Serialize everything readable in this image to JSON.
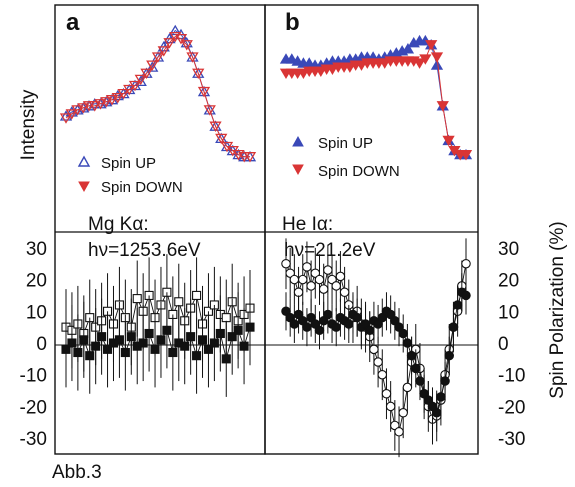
{
  "figure": {
    "footer": "Abb.3"
  },
  "axes": {
    "left_title": "Intensity",
    "right_title": "Spin Polarization (%)",
    "polarization_ticks": [
      30,
      20,
      10,
      0,
      -10,
      -20,
      -30
    ],
    "polarization_ylim": [
      -35,
      35
    ]
  },
  "chart_data": [
    {
      "type": "scatter",
      "panel": "a",
      "label": "a",
      "ylabel": "Intensity",
      "y_ticks_shown": false,
      "legend": [
        "Spin UP",
        "Spin DOWN"
      ],
      "legend_position": "bottom-left",
      "series": [
        {
          "name": "Spin UP",
          "color": "#3a49b8",
          "marker": "triangle-up-open",
          "values": [
            0.57,
            0.59,
            0.6,
            0.61,
            0.62,
            0.63,
            0.63,
            0.64,
            0.65,
            0.67,
            0.68,
            0.7,
            0.72,
            0.74,
            0.78,
            0.81,
            0.86,
            0.91,
            0.95,
            0.99,
            0.97,
            0.93,
            0.86,
            0.78,
            0.69,
            0.6,
            0.52,
            0.46,
            0.42,
            0.4,
            0.38,
            0.37,
            0.37
          ]
        },
        {
          "name": "Spin DOWN",
          "color": "#d93535",
          "marker": "triangle-down-open",
          "values": [
            0.56,
            0.58,
            0.6,
            0.61,
            0.62,
            0.62,
            0.63,
            0.64,
            0.65,
            0.66,
            0.68,
            0.7,
            0.72,
            0.75,
            0.78,
            0.82,
            0.86,
            0.89,
            0.93,
            0.96,
            0.95,
            0.92,
            0.86,
            0.78,
            0.69,
            0.6,
            0.52,
            0.46,
            0.42,
            0.4,
            0.38,
            0.37,
            0.37
          ]
        }
      ]
    },
    {
      "type": "scatter",
      "panel": "b",
      "label": "b",
      "ylabel": "Intensity",
      "y_ticks_shown": false,
      "legend": [
        "Spin UP",
        "Spin DOWN"
      ],
      "legend_position": "middle-left",
      "series": [
        {
          "name": "Spin UP",
          "color": "#3a49b8",
          "marker": "triangle-up-filled",
          "values": [
            0.85,
            0.85,
            0.84,
            0.83,
            0.83,
            0.82,
            0.82,
            0.83,
            0.84,
            0.84,
            0.84,
            0.85,
            0.85,
            0.86,
            0.86,
            0.86,
            0.85,
            0.86,
            0.87,
            0.88,
            0.89,
            0.9,
            0.93,
            0.94,
            0.94,
            0.92,
            0.82,
            0.62,
            0.45,
            0.4,
            0.38,
            0.38
          ]
        },
        {
          "name": "Spin DOWN",
          "color": "#d93535",
          "marker": "triangle-down-filled",
          "values": [
            0.78,
            0.78,
            0.78,
            0.78,
            0.79,
            0.79,
            0.79,
            0.8,
            0.8,
            0.81,
            0.81,
            0.81,
            0.82,
            0.82,
            0.83,
            0.83,
            0.83,
            0.83,
            0.84,
            0.84,
            0.84,
            0.84,
            0.84,
            0.83,
            0.85,
            0.92,
            0.86,
            0.62,
            0.45,
            0.4,
            0.38,
            0.38
          ]
        }
      ]
    },
    {
      "type": "scatter",
      "panel": "a-polarization",
      "annotation": [
        "Mg Kα:",
        "hν=1253.6eV"
      ],
      "ylabel": "Spin Polarization (%)",
      "ylim": [
        -35,
        35
      ],
      "series": [
        {
          "name": "open squares",
          "marker": "square-open",
          "error_bar": 12,
          "values": [
            5,
            4,
            6,
            3,
            8,
            5,
            7,
            10,
            6,
            12,
            8,
            5,
            14,
            10,
            15,
            8,
            12,
            16,
            9,
            13,
            7,
            11,
            15,
            6,
            10,
            12,
            9,
            8,
            13,
            7,
            9,
            11
          ]
        },
        {
          "name": "filled squares",
          "marker": "square-filled",
          "error_bar": 12,
          "values": [
            -2,
            0,
            -3,
            1,
            -4,
            -1,
            2,
            -2,
            0,
            1,
            -3,
            2,
            -1,
            0,
            3,
            -2,
            1,
            4,
            -3,
            0,
            -1,
            2,
            -4,
            1,
            -2,
            0,
            3,
            -5,
            2,
            4,
            -1,
            5
          ]
        }
      ]
    },
    {
      "type": "scatter",
      "panel": "b-polarization",
      "annotation": [
        "He Iα:",
        "hν=21.2eV"
      ],
      "ylabel": "Spin Polarization (%)",
      "ylim": [
        -35,
        35
      ],
      "series": [
        {
          "name": "open circles",
          "marker": "circle-open",
          "error_bar": 8,
          "values": [
            25,
            22,
            20,
            16,
            20,
            24,
            18,
            22,
            20,
            17,
            23,
            20,
            18,
            21,
            16,
            12,
            8,
            10,
            6,
            5,
            2,
            -2,
            -6,
            -10,
            -16,
            -20,
            -26,
            -28,
            -22,
            -14,
            -6,
            -2,
            -8,
            -16,
            -20,
            -24,
            -23,
            -18,
            -10,
            -2,
            5,
            10,
            18,
            25
          ]
        },
        {
          "name": "filled circles",
          "marker": "circle-filled",
          "error_bar": 6,
          "values": [
            10,
            8,
            6,
            9,
            7,
            5,
            8,
            6,
            4,
            7,
            9,
            6,
            5,
            8,
            7,
            6,
            9,
            8,
            5,
            6,
            4,
            7,
            6,
            8,
            10,
            9,
            7,
            5,
            3,
            0,
            -4,
            -8,
            -12,
            -16,
            -18,
            -20,
            -22,
            -17,
            -12,
            -4,
            5,
            12,
            16,
            15
          ]
        }
      ]
    }
  ]
}
